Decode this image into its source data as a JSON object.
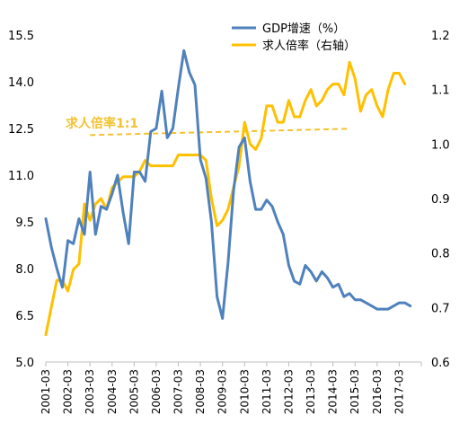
{
  "chart_data": {
    "type": "line",
    "legend": {
      "position": "top-right",
      "entries": [
        "GDP增速（%）",
        "求人倍率（右轴）"
      ]
    },
    "grid": false,
    "annotation": {
      "text": "求人倍率1:1",
      "value": 1.0,
      "style": "dashed",
      "color": "#f2c230"
    },
    "left_axis": {
      "min": 5.0,
      "max": 15.5,
      "ticks": [
        "5.0",
        "6.5",
        "8.0",
        "9.5",
        "11.0",
        "12.5",
        "14.0",
        "15.5"
      ]
    },
    "right_axis": {
      "min": 0.6,
      "max": 1.2,
      "ticks": [
        "0.6",
        "0.7",
        "0.8",
        "0.9",
        "1.0",
        "1.1",
        "1.2"
      ]
    },
    "x_ticks": [
      "2001-03",
      "2002-03",
      "2003-03",
      "2004-03",
      "2005-03",
      "2006-03",
      "2007-03",
      "2008-03",
      "2009-03",
      "2010-03",
      "2011-03",
      "2012-03",
      "2013-03",
      "2014-03",
      "2015-03",
      "2016-03",
      "2017-03"
    ],
    "x_start": "2001-03",
    "series": [
      {
        "name": "GDP增速（%）",
        "axis": "left",
        "color": "#4f81bd",
        "values": [
          9.6,
          8.7,
          8.0,
          7.4,
          8.9,
          8.8,
          9.6,
          9.1,
          11.1,
          9.1,
          10.0,
          9.9,
          10.4,
          11.0,
          9.8,
          8.8,
          11.1,
          11.1,
          10.8,
          12.4,
          12.5,
          13.7,
          12.2,
          12.5,
          13.8,
          15.0,
          14.3,
          13.9,
          11.5,
          10.9,
          9.5,
          7.1,
          6.4,
          8.2,
          10.5,
          11.9,
          12.2,
          10.8,
          9.9,
          9.9,
          10.2,
          10.0,
          9.5,
          9.1,
          8.1,
          7.6,
          7.5,
          8.1,
          7.9,
          7.6,
          7.9,
          7.7,
          7.4,
          7.5,
          7.1,
          7.2,
          7.0,
          7.0,
          6.9,
          6.8,
          6.7,
          6.7,
          6.7,
          6.8,
          6.9,
          6.9,
          6.8
        ]
      },
      {
        "name": "求人倍率（右轴）",
        "axis": "right",
        "color": "#ffc000",
        "values": [
          0.65,
          0.7,
          0.75,
          0.75,
          0.73,
          0.77,
          0.78,
          0.89,
          0.86,
          0.89,
          0.9,
          0.88,
          0.92,
          0.93,
          0.94,
          0.94,
          0.94,
          0.95,
          0.97,
          0.96,
          0.96,
          0.96,
          0.96,
          0.96,
          0.98,
          0.98,
          0.98,
          0.98,
          0.98,
          0.97,
          0.9,
          0.85,
          0.86,
          0.88,
          0.92,
          0.96,
          1.04,
          1.0,
          0.99,
          1.01,
          1.07,
          1.07,
          1.04,
          1.04,
          1.08,
          1.05,
          1.05,
          1.08,
          1.1,
          1.07,
          1.08,
          1.1,
          1.11,
          1.11,
          1.09,
          1.15,
          1.12,
          1.06,
          1.09,
          1.1,
          1.07,
          1.05,
          1.1,
          1.13,
          1.13,
          1.11
        ]
      }
    ]
  }
}
